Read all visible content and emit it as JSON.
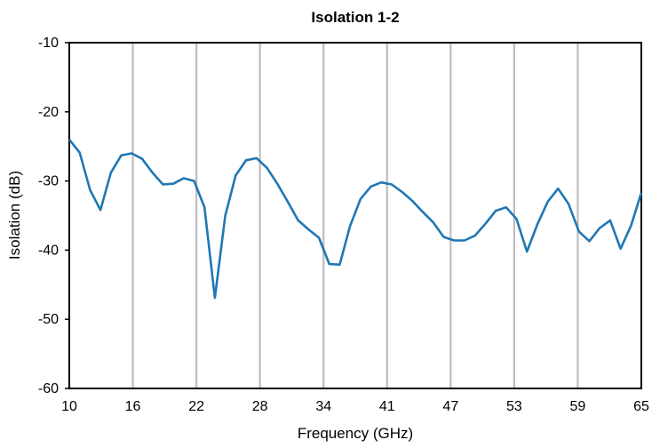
{
  "chart_data": {
    "type": "line",
    "title": "Isolation 1-2",
    "xlabel": "Frequency (GHz)",
    "ylabel": "Isolation (dB)",
    "xlim": [
      10,
      65
    ],
    "ylim": [
      -60,
      -10
    ],
    "x_ticks": [
      "10",
      "16",
      "22",
      "28",
      "34",
      "41",
      "47",
      "53",
      "59",
      "65"
    ],
    "y_ticks": [
      "-10",
      "-20",
      "-30",
      "-40",
      "-50",
      "-60"
    ],
    "grid": "vertical",
    "legend": "none",
    "colors": {
      "line": "#1f77b4",
      "grid": "#bdbdbd",
      "axis": "#000000"
    },
    "series": [
      {
        "x": [
          10,
          11,
          12,
          13,
          14,
          15,
          16,
          17,
          18,
          19,
          20,
          21,
          22,
          23,
          24,
          25,
          26,
          27,
          28,
          29,
          30,
          31,
          32,
          33,
          34,
          35,
          36,
          37,
          38,
          39,
          40,
          41,
          42,
          43,
          44,
          45,
          46,
          47,
          48,
          49,
          50,
          51,
          52,
          53,
          54,
          55,
          56,
          57,
          58,
          59,
          60,
          61,
          62,
          63,
          64,
          65
        ],
        "y": [
          -24.0,
          -25.9,
          -31.3,
          -34.2,
          -28.8,
          -26.3,
          -26.0,
          -26.8,
          -28.8,
          -30.5,
          -30.4,
          -29.6,
          -30.0,
          -33.8,
          -46.9,
          -35.0,
          -29.2,
          -27.0,
          -26.7,
          -28.1,
          -30.4,
          -33.0,
          -35.7,
          -37.0,
          -38.2,
          -42.0,
          -42.1,
          -36.5,
          -32.6,
          -30.8,
          -30.2,
          -30.5,
          -31.6,
          -32.9,
          -34.5,
          -36.0,
          -38.1,
          -38.6,
          -38.6,
          -37.9,
          -36.2,
          -34.3,
          -33.8,
          -35.5,
          -40.2,
          -36.3,
          -33.0,
          -31.1,
          -33.3,
          -37.3,
          -38.7,
          -36.8,
          -35.7,
          -39.8,
          -36.5,
          -31.7
        ]
      }
    ]
  }
}
